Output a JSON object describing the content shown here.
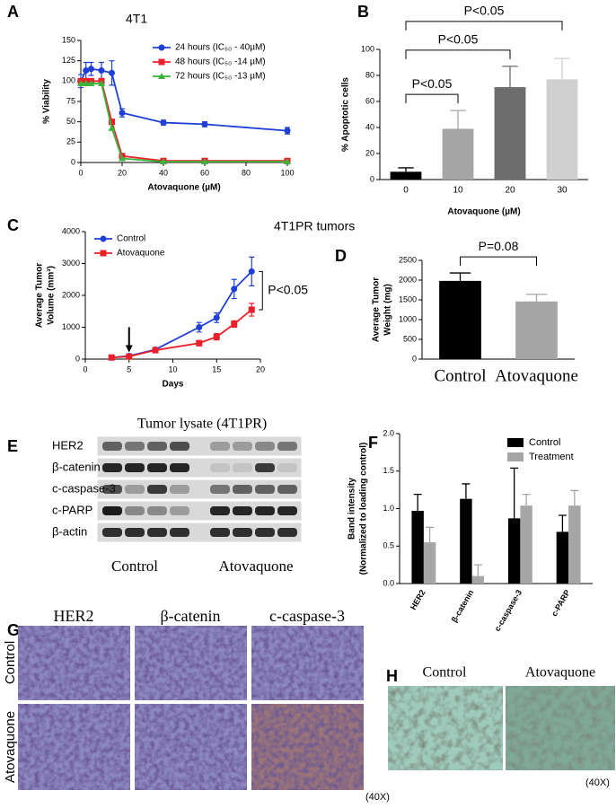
{
  "chart_data": [
    {
      "panel": "A",
      "type": "line",
      "title": "4T1",
      "xlabel": "Atovaquone (µM)",
      "ylabel": [
        "% Viability"
      ],
      "x": [
        0,
        2.5,
        5,
        10,
        15,
        20,
        40,
        60,
        100
      ],
      "series": [
        {
          "name": "24 hours (IC₅₀ - 40µM)",
          "color": "#1f3fd6",
          "marker": "circle",
          "values": [
            100,
            113,
            115,
            113,
            110,
            61,
            49,
            47,
            39
          ],
          "errors": [
            8,
            10,
            8,
            10,
            15,
            5,
            3,
            3,
            4
          ]
        },
        {
          "name": "48 hours (IC₅₀ -14 µM)",
          "color": "#e8202a",
          "marker": "square",
          "values": [
            100,
            100,
            100,
            100,
            50,
            8,
            2,
            2,
            2
          ]
        },
        {
          "name": "72 hours (IC₅₀ -13 µM)",
          "color": "#3cb43c",
          "marker": "triangle",
          "values": [
            97,
            97,
            97,
            97,
            42,
            5,
            1,
            1,
            1
          ]
        }
      ],
      "xlim": [
        0,
        100
      ],
      "xticks": [
        0,
        20,
        40,
        60,
        80,
        100
      ],
      "ylim": [
        0,
        150
      ],
      "yticks": [
        0,
        25,
        50,
        75,
        100,
        125,
        150
      ],
      "legend": "upper right"
    },
    {
      "panel": "B",
      "type": "bar",
      "xlabel": "Atovaquone (µM)",
      "ylabel": [
        "% Apoptotic cells"
      ],
      "categories": [
        "0",
        "10",
        "20",
        "30"
      ],
      "values": [
        6,
        39,
        71,
        77
      ],
      "errors": [
        3,
        14,
        16,
        16
      ],
      "colors": [
        "#000000",
        "#a6a6a6",
        "#6d6d6d",
        "#d0d0d0"
      ],
      "ylim": [
        0,
        100
      ],
      "yticks": [
        0,
        20,
        40,
        60,
        80,
        100
      ],
      "annotations": [
        {
          "text": "P<0.05",
          "between": [
            0,
            1
          ]
        },
        {
          "text": "P<0.05",
          "between": [
            0,
            2
          ]
        },
        {
          "text": "P<0.05",
          "between": [
            0,
            3
          ]
        }
      ]
    },
    {
      "panel": "C",
      "type": "line",
      "title": "4T1PR tumors",
      "xlabel": "Days",
      "ylabel": [
        "Average Tumor",
        "Volume (mm³)"
      ],
      "x": [
        3,
        5,
        8,
        13,
        15,
        17,
        19
      ],
      "series": [
        {
          "name": "Control",
          "color": "#1f3fd6",
          "marker": "circle",
          "values": [
            50,
            100,
            300,
            1000,
            1300,
            2200,
            2750
          ],
          "errors": [
            30,
            30,
            50,
            150,
            150,
            300,
            450
          ]
        },
        {
          "name": "Atovaquone",
          "color": "#e8202a",
          "marker": "square",
          "values": [
            50,
            80,
            280,
            500,
            700,
            1100,
            1550
          ],
          "errors": [
            30,
            30,
            50,
            80,
            100,
            100,
            200
          ]
        }
      ],
      "xlim": [
        0,
        20
      ],
      "xticks": [
        0,
        5,
        10,
        15,
        20
      ],
      "ylim": [
        0,
        4000
      ],
      "yticks": [
        0,
        1000,
        2000,
        3000,
        4000
      ],
      "legend": "upper left",
      "arrow_x": 5,
      "annotation": "P<0.05"
    },
    {
      "panel": "D",
      "type": "bar",
      "ylabel": [
        "Average Tumor",
        "Weight (mg)"
      ],
      "categories": [
        "Control",
        "Atovaquone"
      ],
      "values": [
        1980,
        1460
      ],
      "errors": [
        200,
        180
      ],
      "colors": [
        "#000000",
        "#a6a6a6"
      ],
      "ylim": [
        0,
        2500
      ],
      "yticks": [
        0,
        500,
        1000,
        1500,
        2000,
        2500
      ],
      "annotations": [
        {
          "text": "P=0.08",
          "between": [
            0,
            1
          ]
        }
      ]
    },
    {
      "panel": "F",
      "type": "grouped_bar",
      "ylabel": [
        "Band intensity",
        "(Normalized to loading control)"
      ],
      "categories": [
        "HER2",
        "β-catenin",
        "c-caspase-3",
        "c-PARP"
      ],
      "series": [
        {
          "name": "Control",
          "color": "#000000",
          "values": [
            0.97,
            1.13,
            0.87,
            0.69
          ],
          "errors": [
            0.22,
            0.2,
            0.67,
            0.22
          ]
        },
        {
          "name": "Treatment",
          "color": "#a6a6a6",
          "values": [
            0.55,
            0.1,
            1.04,
            1.04
          ],
          "errors": [
            0.2,
            0.15,
            0.15,
            0.2
          ]
        }
      ],
      "ylim": [
        0,
        2
      ],
      "yticks": [
        {
          "value": 0,
          "label": "0.0"
        },
        0.5,
        {
          "value": 1,
          "label": "1.0"
        },
        1.5,
        {
          "value": 2,
          "label": "2.0"
        }
      ],
      "legend": "upper right"
    }
  ],
  "blot": {
    "panel": "E",
    "title": "Tumor lysate (4T1PR)",
    "rows": [
      "HER2",
      "β-catenin",
      "c-caspase-3",
      "c-PARP",
      "β-actin"
    ],
    "groups": [
      "Control",
      "Atovaquone"
    ]
  },
  "ihc": {
    "panel": "G",
    "columns": [
      "HER2",
      "β-catenin",
      "c-caspase-3"
    ],
    "rows": [
      "Control",
      "Atovaquone"
    ],
    "magnification": "(40X)"
  },
  "stain": {
    "panel": "H",
    "columns": [
      "Control",
      "Atovaquone"
    ],
    "magnification": "(40X)"
  }
}
